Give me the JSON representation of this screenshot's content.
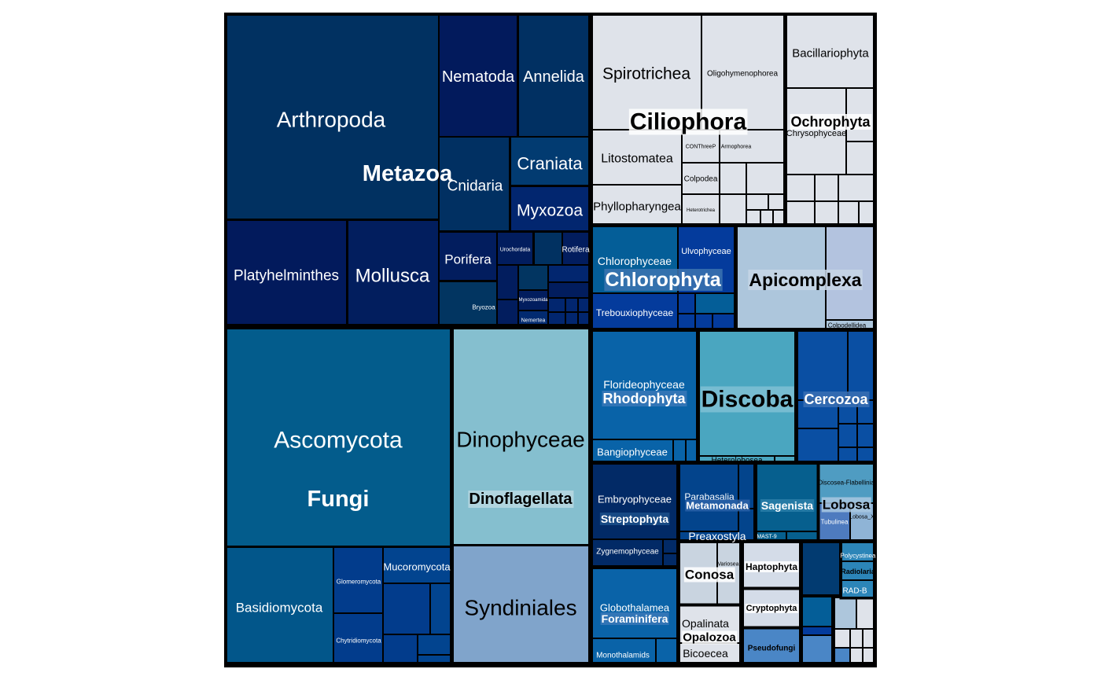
{
  "chart_data": {
    "type": "treemap",
    "groups": [
      {
        "name": "Metazoa",
        "color": "#013161",
        "children": [
          {
            "name": "Arthropoda",
            "color": "#013161"
          },
          {
            "name": "Platyhelminthes",
            "color": "#021a5c"
          },
          {
            "name": "Mollusca",
            "color": "#021e5e"
          },
          {
            "name": "Nematoda",
            "color": "#021a5c"
          },
          {
            "name": "Annelida",
            "color": "#013062"
          },
          {
            "name": "Cnidaria",
            "color": "#013062"
          },
          {
            "name": "Craniata",
            "color": "#023b71"
          },
          {
            "name": "Myxozoa",
            "color": "#02266f"
          },
          {
            "name": "Porifera",
            "color": "#021d5e"
          },
          {
            "name": "Urochordata",
            "color": "#021d5e"
          },
          {
            "name": "Rotifera",
            "color": "#021d5e"
          },
          {
            "name": "Bryozoa",
            "color": "#023561"
          },
          {
            "name": "Myxozoamida",
            "color": "#021d5e"
          },
          {
            "name": "Nemertea",
            "color": "#022a70"
          }
        ]
      },
      {
        "name": "Fungi",
        "color": "#035c8c",
        "children": [
          {
            "name": "Ascomycota",
            "color": "#035c8c"
          },
          {
            "name": "Basidiomycota",
            "color": "#02568a"
          },
          {
            "name": "Glomeromycota",
            "color": "#023c8c"
          },
          {
            "name": "Chytridiomycota",
            "color": "#023c8c"
          },
          {
            "name": "Mucoromycota",
            "color": "#02448f"
          }
        ]
      },
      {
        "name": "Dinoflagellata",
        "color": "#85bfcf",
        "children": [
          {
            "name": "Dinophyceae",
            "color": "#85bfcf"
          },
          {
            "name": "Syndiniales",
            "color": "#80a4cb"
          }
        ]
      },
      {
        "name": "Ciliophora",
        "color": "#dfe3ea",
        "children": [
          {
            "name": "Spirotrichea",
            "color": "#dfe3ea"
          },
          {
            "name": "Oligohymenophorea",
            "color": "#dfe3ea"
          },
          {
            "name": "Litostomatea",
            "color": "#dfe3ea"
          },
          {
            "name": "CONThreeP",
            "color": "#dfe3ea"
          },
          {
            "name": "Armophorea",
            "color": "#dfe3ea"
          },
          {
            "name": "Colpodea",
            "color": "#dfe3ea"
          },
          {
            "name": "Phyllopharyngea",
            "color": "#dfe3ea"
          },
          {
            "name": "Heterotrichea",
            "color": "#dfe3ea"
          }
        ]
      },
      {
        "name": "Ochrophyta",
        "color": "#dfe3ea",
        "children": [
          {
            "name": "Bacillariophyta",
            "color": "#dfe3ea"
          },
          {
            "name": "Chrysophyceae",
            "color": "#dfe3ea"
          }
        ]
      },
      {
        "name": "Chlorophyta",
        "color": "#045e98",
        "children": [
          {
            "name": "Chlorophyceae",
            "color": "#045e98"
          },
          {
            "name": "Ulvophyceae",
            "color": "#043b9c"
          },
          {
            "name": "Trebouxiophyceae",
            "color": "#043b9c"
          }
        ]
      },
      {
        "name": "Apicomplexa",
        "color": "#adc6dc",
        "children": [
          {
            "name": "Colpodellidea",
            "color": "#b3c3df"
          }
        ]
      },
      {
        "name": "Rhodophyta",
        "color": "#0963a8",
        "children": [
          {
            "name": "Florideophyceae",
            "color": "#0963a8"
          },
          {
            "name": "Bangiophyceae",
            "color": "#0963a8"
          }
        ]
      },
      {
        "name": "Discoba",
        "color": "#4aa6c0",
        "children": [
          {
            "name": "Heterolobosea",
            "color": "#4aa6c0"
          }
        ]
      },
      {
        "name": "Cercozoa",
        "color": "#0a4fa3",
        "children": []
      },
      {
        "name": "Streptophyta",
        "color": "#022a66",
        "children": [
          {
            "name": "Embryophyceae",
            "color": "#022a66"
          },
          {
            "name": "Zygnemophyceae",
            "color": "#022a66"
          }
        ]
      },
      {
        "name": "Metamonada",
        "color": "#03448c",
        "children": [
          {
            "name": "Parabasalia",
            "color": "#03448c"
          },
          {
            "name": "Preaxostyla",
            "color": "#03448c"
          }
        ]
      },
      {
        "name": "Sagenista",
        "color": "#065f8e",
        "children": [
          {
            "name": "MAST-9",
            "color": "#065f8e"
          }
        ]
      },
      {
        "name": "Lobosa",
        "color": "#74a6c8",
        "children": [
          {
            "name": "Discosea-Flabellinia",
            "color": "#4f9cc2"
          },
          {
            "name": "Tubulinea",
            "color": "#4e7bbf"
          },
          {
            "name": "Lobosa_X",
            "color": "#8fb4d6"
          }
        ]
      },
      {
        "name": "Foraminifera",
        "color": "#0a63a8",
        "children": [
          {
            "name": "Globothalamea",
            "color": "#0a63a8"
          },
          {
            "name": "Monothalamids",
            "color": "#0a63a8"
          }
        ]
      },
      {
        "name": "Conosa",
        "color": "#c9d4e0",
        "children": [
          {
            "name": "Variosea",
            "color": "#c9d4e0"
          }
        ]
      },
      {
        "name": "Opalozoa",
        "color": "#dfe3ea",
        "children": [
          {
            "name": "Opalinata",
            "color": "#dfe3ea"
          },
          {
            "name": "Bicoecea",
            "color": "#dfe3ea"
          }
        ]
      },
      {
        "name": "Haptophyta",
        "color": "#d4dce8",
        "children": []
      },
      {
        "name": "Cryptophyta",
        "color": "#d4dce8",
        "children": []
      },
      {
        "name": "Pseudofungi",
        "color": "#4a86c6",
        "children": []
      },
      {
        "name": "Radiolaria",
        "color": "#2c85b8",
        "children": [
          {
            "name": "Polycystinea",
            "color": "#2c85b8"
          },
          {
            "name": "RAD-B",
            "color": "#2c85b8"
          }
        ]
      }
    ]
  }
}
